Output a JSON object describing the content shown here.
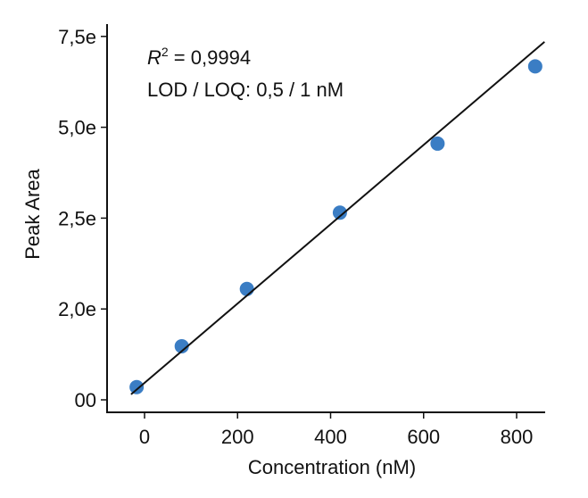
{
  "chart_data": {
    "type": "scatter",
    "title": "",
    "xlabel": "Concentration (nM)",
    "ylabel": "Peak Area",
    "x_ticks": [
      0,
      200,
      400,
      600,
      800
    ],
    "x_tick_labels": [
      "0",
      "200",
      "400",
      "600",
      "800"
    ],
    "xlim": [
      -80,
      860
    ],
    "y_tick_labels": [
      "00",
      "2,0e",
      "2,5e",
      "5,0e",
      "7,5e"
    ],
    "y_note": "y values expressed in units of tick spacing (00 = 0, 7,5e = 4)",
    "ylim": [
      -0.13,
      4.15
    ],
    "points": [
      {
        "x": -17,
        "y": 0.14
      },
      {
        "x": 80,
        "y": 0.59
      },
      {
        "x": 220,
        "y": 1.22
      },
      {
        "x": 420,
        "y": 2.06
      },
      {
        "x": 630,
        "y": 2.82
      },
      {
        "x": 840,
        "y": 3.67
      }
    ],
    "fit_line": {
      "x": [
        -29,
        860
      ],
      "y": [
        0.06,
        3.94
      ]
    },
    "annotations": {
      "r2_label": "R",
      "r2_sup": "2",
      "r2_value": " = 0,9994",
      "lod_loq": "LOD / LOQ: 0,5 / 1 nM"
    },
    "grid": false,
    "colors": {
      "points": "#3a7dc4",
      "line": "#111111"
    }
  }
}
